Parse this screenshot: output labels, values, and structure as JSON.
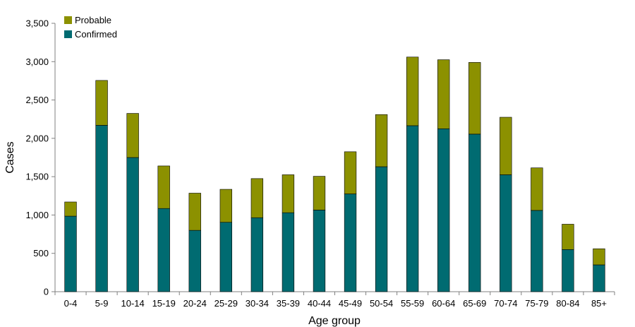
{
  "chart_data": {
    "type": "bar",
    "stacked": true,
    "title": "",
    "xlabel": "Age group",
    "ylabel": "Cases",
    "ylim": [
      0,
      3500
    ],
    "ytick_values": [
      0,
      500,
      1000,
      1500,
      2000,
      2500,
      3000,
      3500
    ],
    "ytick_labels": [
      "0",
      "500",
      "1,000",
      "1,500",
      "2,000",
      "2,500",
      "3,000",
      "3,500"
    ],
    "grid": false,
    "legend_position": "top-left",
    "categories": [
      "0-4",
      "5-9",
      "10-14",
      "15-19",
      "20-24",
      "25-29",
      "30-34",
      "35-39",
      "40-44",
      "45-49",
      "50-54",
      "55-59",
      "60-64",
      "65-69",
      "70-74",
      "75-79",
      "80-84",
      "85+"
    ],
    "series": [
      {
        "name": "Confirmed",
        "color": "#006B71",
        "values": [
          985,
          2170,
          1750,
          1085,
          800,
          905,
          965,
          1030,
          1065,
          1275,
          1630,
          2165,
          2125,
          2055,
          1525,
          1060,
          550,
          350
        ]
      },
      {
        "name": "Probable",
        "color": "#8C9100",
        "values": [
          185,
          585,
          575,
          555,
          485,
          430,
          510,
          495,
          440,
          550,
          680,
          895,
          900,
          935,
          750,
          555,
          330,
          210
        ]
      }
    ],
    "legend": [
      {
        "name": "Probable",
        "color": "#8C9100"
      },
      {
        "name": "Confirmed",
        "color": "#006B71"
      }
    ]
  }
}
